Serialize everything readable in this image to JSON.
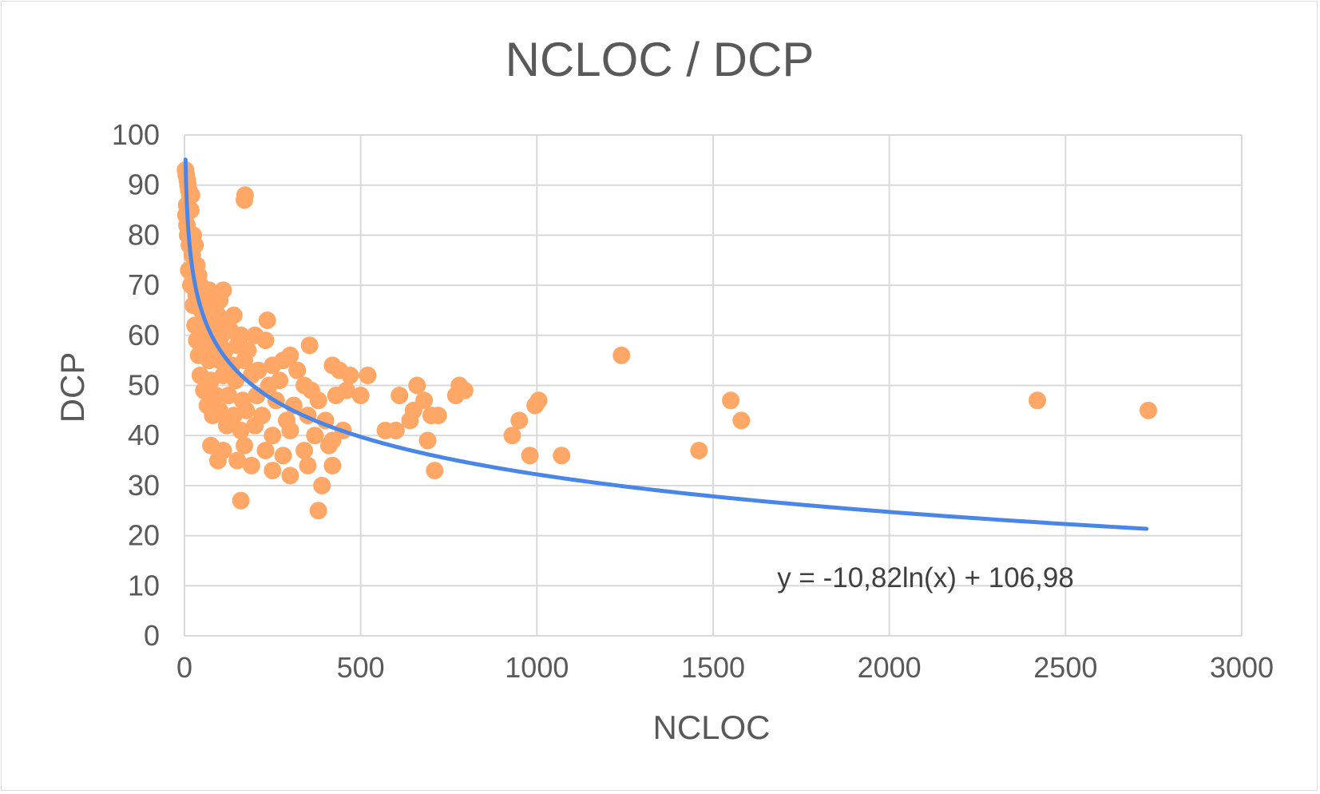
{
  "chart_data": {
    "type": "scatter",
    "title": "NCLOC / DCP",
    "xlabel": "NCLOC",
    "ylabel": "DCP",
    "xlim": [
      0,
      3000
    ],
    "ylim": [
      0,
      100
    ],
    "xticks": [
      "0",
      "500",
      "1000",
      "1500",
      "2000",
      "2500",
      "3000"
    ],
    "yticks": [
      "0",
      "10",
      "20",
      "30",
      "40",
      "50",
      "60",
      "70",
      "80",
      "90",
      "100"
    ],
    "grid": true,
    "legend": "none",
    "marker_color": "#ffa766",
    "trend_color": "#4a86e8",
    "trendline": {
      "type": "logarithmic",
      "a": -10.82,
      "b": 106.98,
      "x_range": [
        3,
        2730
      ],
      "equation_label": "y = -10,82ln(x) + 106,98"
    },
    "points": [
      [
        3,
        93
      ],
      [
        5,
        92
      ],
      [
        8,
        91
      ],
      [
        10,
        90
      ],
      [
        12,
        89
      ],
      [
        15,
        88
      ],
      [
        6,
        86
      ],
      [
        4,
        84
      ],
      [
        18,
        85
      ],
      [
        20,
        88
      ],
      [
        7,
        82
      ],
      [
        9,
        80
      ],
      [
        25,
        80
      ],
      [
        30,
        78
      ],
      [
        14,
        78
      ],
      [
        22,
        76
      ],
      [
        35,
        74
      ],
      [
        12,
        73
      ],
      [
        28,
        72
      ],
      [
        40,
        72
      ],
      [
        18,
        70
      ],
      [
        45,
        70
      ],
      [
        33,
        68
      ],
      [
        52,
        69
      ],
      [
        60,
        68
      ],
      [
        70,
        69
      ],
      [
        85,
        68
      ],
      [
        100,
        67
      ],
      [
        110,
        69
      ],
      [
        25,
        66
      ],
      [
        48,
        65
      ],
      [
        65,
        65
      ],
      [
        80,
        66
      ],
      [
        95,
        64
      ],
      [
        120,
        63
      ],
      [
        140,
        64
      ],
      [
        30,
        62
      ],
      [
        55,
        62
      ],
      [
        75,
        61
      ],
      [
        90,
        62
      ],
      [
        105,
        60
      ],
      [
        130,
        61
      ],
      [
        160,
        60
      ],
      [
        35,
        59
      ],
      [
        60,
        58
      ],
      [
        85,
        58
      ],
      [
        115,
        57
      ],
      [
        150,
        58
      ],
      [
        180,
        57
      ],
      [
        200,
        60
      ],
      [
        230,
        59
      ],
      [
        40,
        56
      ],
      [
        70,
        55
      ],
      [
        100,
        55
      ],
      [
        135,
        54
      ],
      [
        170,
        55
      ],
      [
        210,
        53
      ],
      [
        250,
        54
      ],
      [
        280,
        55
      ],
      [
        300,
        56
      ],
      [
        320,
        53
      ],
      [
        45,
        52
      ],
      [
        75,
        51
      ],
      [
        110,
        52
      ],
      [
        145,
        51
      ],
      [
        190,
        52
      ],
      [
        240,
        50
      ],
      [
        270,
        51
      ],
      [
        340,
        50
      ],
      [
        360,
        49
      ],
      [
        55,
        49
      ],
      [
        90,
        48
      ],
      [
        125,
        48
      ],
      [
        165,
        47
      ],
      [
        205,
        48
      ],
      [
        260,
        47
      ],
      [
        310,
        46
      ],
      [
        380,
        47
      ],
      [
        65,
        46
      ],
      [
        100,
        45
      ],
      [
        140,
        44
      ],
      [
        175,
        45
      ],
      [
        220,
        44
      ],
      [
        290,
        43
      ],
      [
        350,
        44
      ],
      [
        400,
        43
      ],
      [
        80,
        44
      ],
      [
        120,
        42
      ],
      [
        160,
        41
      ],
      [
        200,
        42
      ],
      [
        250,
        40
      ],
      [
        300,
        41
      ],
      [
        370,
        40
      ],
      [
        450,
        41
      ],
      [
        420,
        39
      ],
      [
        75,
        38
      ],
      [
        110,
        37
      ],
      [
        170,
        38
      ],
      [
        230,
        37
      ],
      [
        280,
        36
      ],
      [
        340,
        37
      ],
      [
        410,
        38
      ],
      [
        95,
        35
      ],
      [
        150,
        35
      ],
      [
        190,
        34
      ],
      [
        250,
        33
      ],
      [
        300,
        32
      ],
      [
        350,
        34
      ],
      [
        420,
        34
      ],
      [
        160,
        27
      ],
      [
        170,
        87
      ],
      [
        172,
        88
      ],
      [
        235,
        63
      ],
      [
        355,
        58
      ],
      [
        420,
        54
      ],
      [
        440,
        53
      ],
      [
        470,
        52
      ],
      [
        520,
        52
      ],
      [
        430,
        48
      ],
      [
        460,
        49
      ],
      [
        500,
        48
      ],
      [
        570,
        41
      ],
      [
        600,
        41
      ],
      [
        610,
        48
      ],
      [
        640,
        43
      ],
      [
        650,
        45
      ],
      [
        660,
        50
      ],
      [
        680,
        47
      ],
      [
        690,
        39
      ],
      [
        700,
        44
      ],
      [
        720,
        44
      ],
      [
        770,
        48
      ],
      [
        780,
        50
      ],
      [
        795,
        49
      ],
      [
        390,
        30
      ],
      [
        380,
        25
      ],
      [
        710,
        33
      ],
      [
        930,
        40
      ],
      [
        950,
        43
      ],
      [
        980,
        36
      ],
      [
        995,
        46
      ],
      [
        1005,
        47
      ],
      [
        1070,
        36
      ],
      [
        1240,
        56
      ],
      [
        1460,
        37
      ],
      [
        1550,
        47
      ],
      [
        1580,
        43
      ],
      [
        2420,
        47
      ],
      [
        2735,
        45
      ]
    ]
  }
}
